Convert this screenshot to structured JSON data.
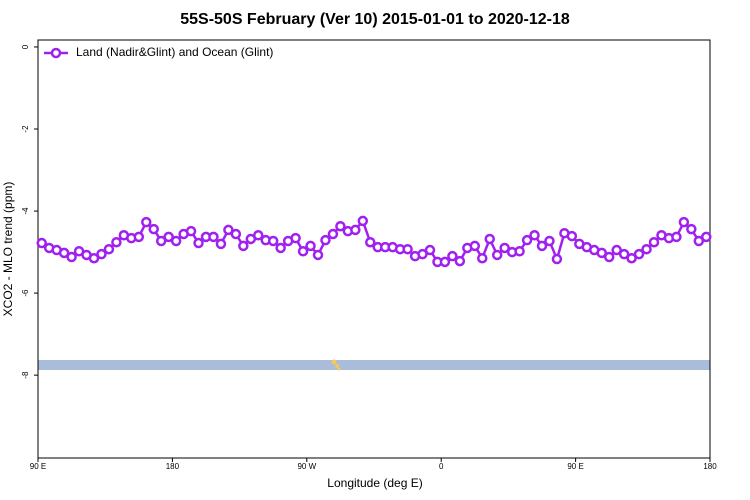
{
  "chart_data": {
    "type": "line",
    "title": "55S-50S February (Ver 10)   2015-01-01 to 2020-12-18",
    "x_label": "Longitude (deg E)",
    "y_label": "XCO2 - MLO trend (ppm)",
    "legend": "top-left",
    "xlim": [
      90,
      540
    ],
    "xticks": [
      {
        "value": 90,
        "label": "90 E"
      },
      {
        "value": 180,
        "label": "180"
      },
      {
        "value": 270,
        "label": "90 W"
      },
      {
        "value": 360,
        "label": "0"
      },
      {
        "value": 450,
        "label": "90 E"
      },
      {
        "value": 540,
        "label": "180"
      }
    ],
    "ylim": [
      -10.02,
      0.17
    ],
    "yticks": [
      0,
      -2,
      -4,
      -6,
      -8
    ],
    "x": [
      92.5,
      97.5,
      102.5,
      107.5,
      112.5,
      117.5,
      122.5,
      127.5,
      132.5,
      137.5,
      142.5,
      147.5,
      152.5,
      157.5,
      162.5,
      167.5,
      172.5,
      177.5,
      182.5,
      187.5,
      192.5,
      197.5,
      202.5,
      207.5,
      212.5,
      217.5,
      222.5,
      227.5,
      232.5,
      237.5,
      242.5,
      247.5,
      252.5,
      257.5,
      262.5,
      267.5,
      272.5,
      277.5,
      282.5,
      287.5,
      292.5,
      297.5,
      302.5,
      307.5,
      312.5,
      317.5,
      322.5,
      327.5,
      332.5,
      337.5,
      342.5,
      347.5,
      352.5,
      357.5,
      362.5,
      367.5,
      372.5,
      377.5,
      382.5,
      387.5,
      392.5,
      397.5,
      402.5,
      407.5,
      412.5,
      417.5,
      422.5,
      427.5,
      432.5,
      437.5,
      442.5,
      447.5,
      452.5,
      457.5,
      462.5,
      467.5,
      472.5,
      477.5,
      482.5,
      487.5,
      492.5,
      497.5,
      502.5,
      507.5,
      512.5,
      517.5,
      522.5,
      527.5,
      532.5,
      537.5
    ],
    "series": [
      {
        "name": "Land (Nadir&Glint) and Ocean (Glint)",
        "color": "#a020f0",
        "values": [
          -4.78,
          -4.9,
          -4.95,
          -5.02,
          -5.12,
          -4.98,
          -5.07,
          -5.15,
          -5.05,
          -4.93,
          -4.76,
          -4.59,
          -4.66,
          -4.63,
          -4.27,
          -4.44,
          -4.73,
          -4.63,
          -4.73,
          -4.56,
          -4.49,
          -4.78,
          -4.63,
          -4.63,
          -4.8,
          -4.46,
          -4.56,
          -4.85,
          -4.68,
          -4.59,
          -4.71,
          -4.73,
          -4.9,
          -4.73,
          -4.66,
          -4.98,
          -4.85,
          -5.07,
          -4.71,
          -4.56,
          -4.37,
          -4.49,
          -4.46,
          -4.24,
          -4.76,
          -4.88,
          -4.88,
          -4.88,
          -4.93,
          -4.93,
          -5.1,
          -5.05,
          -4.95,
          -5.24,
          -5.24,
          -5.1,
          -5.22,
          -4.9,
          -4.85,
          -5.15,
          -4.68,
          -5.07,
          -4.9,
          -5.0,
          -4.98,
          -4.71,
          -4.59,
          -4.85,
          -4.73,
          -5.17,
          -4.54,
          -4.61,
          -4.8,
          -4.88,
          -4.95,
          -5.02,
          -5.12,
          -4.95,
          -5.05,
          -5.15,
          -5.05,
          -4.93,
          -4.76,
          -4.59,
          -4.66,
          -4.63,
          -4.27,
          -4.44,
          -4.73,
          -4.63
        ]
      }
    ]
  }
}
